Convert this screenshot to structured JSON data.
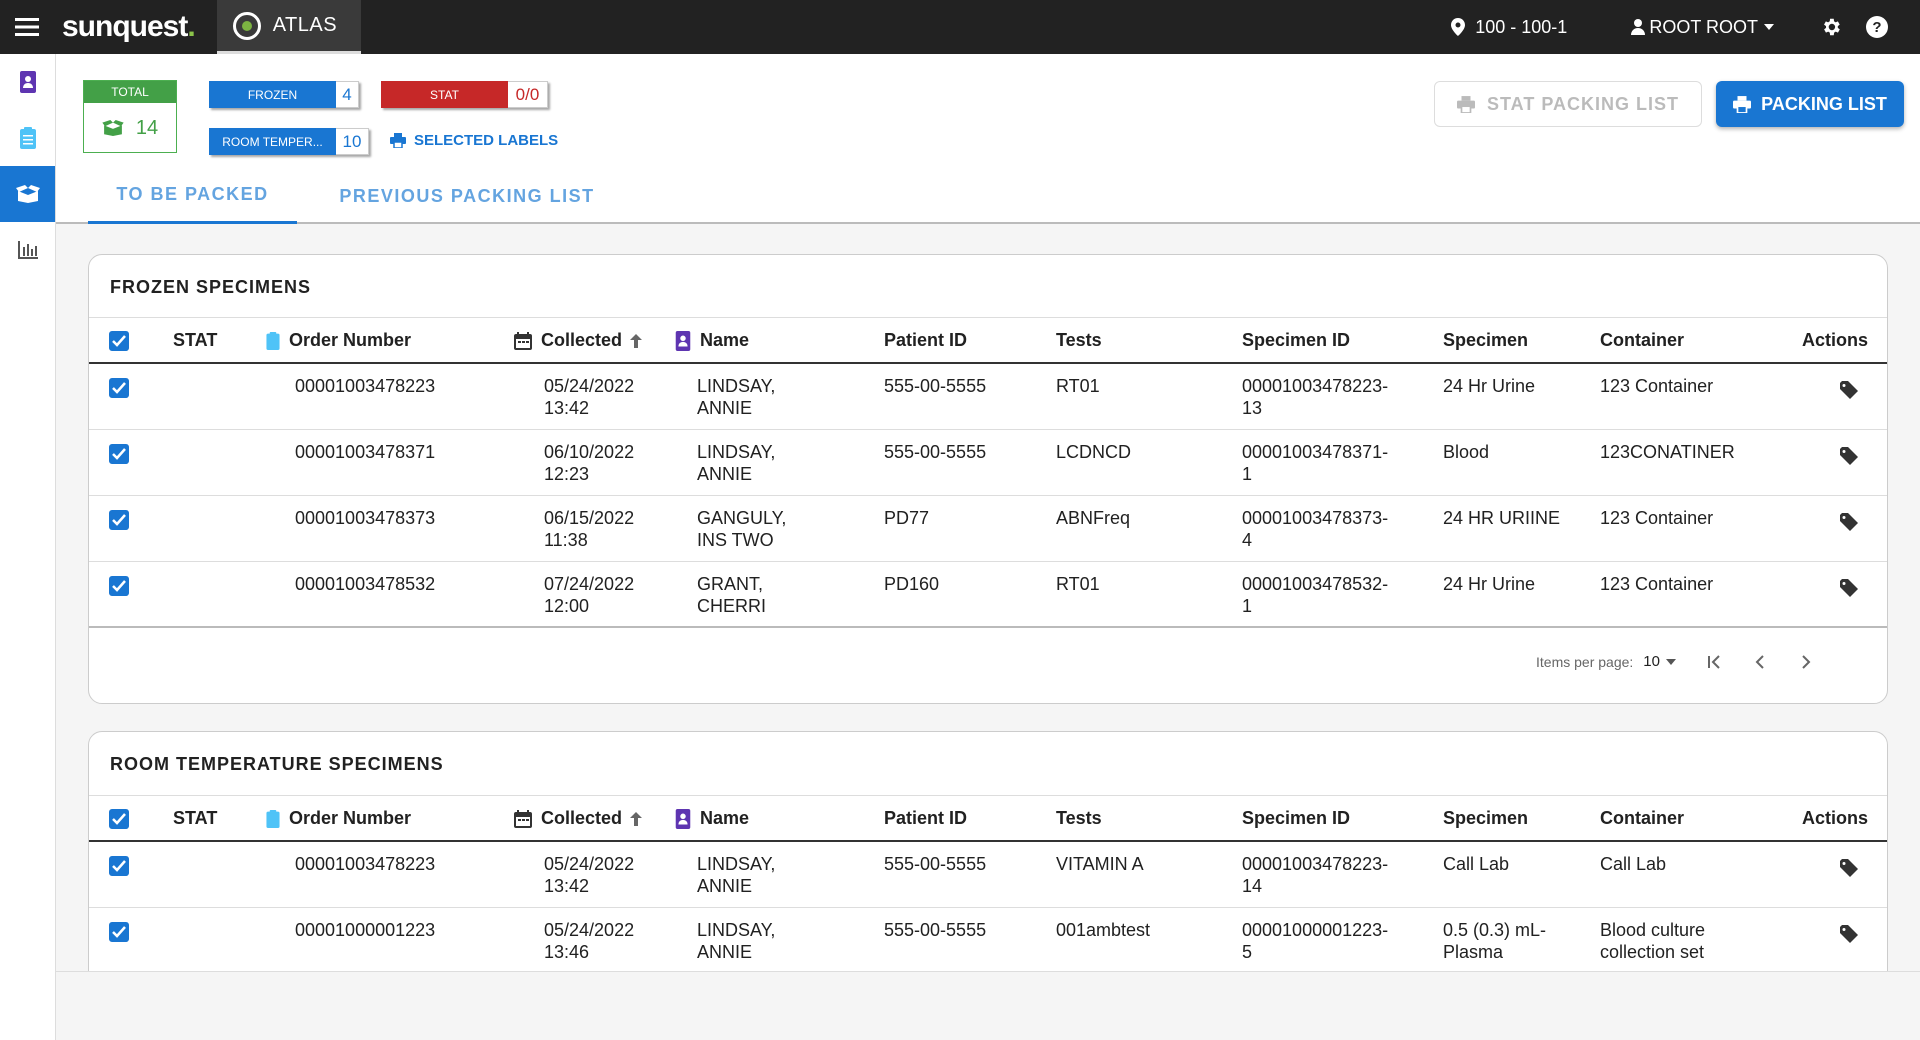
{
  "brand": {
    "name": "sunquest",
    "dot": "."
  },
  "app": {
    "name": "ATLAS"
  },
  "topbar": {
    "location": "100 - 100-1",
    "user": "ROOT ROOT"
  },
  "summary": {
    "total_label": "TOTAL",
    "total_value": "14",
    "frozen_label": "FROZEN",
    "frozen_value": "4",
    "stat_label": "STAT",
    "stat_value": "0/0",
    "room_label": "ROOM TEMPER...",
    "room_value": "10",
    "selected_labels": "SELECTED LABELS"
  },
  "buttons": {
    "stat_packing_list": "STAT PACKING LIST",
    "packing_list": "PACKING LIST"
  },
  "tabs": [
    {
      "label": "TO BE PACKED"
    },
    {
      "label": "PREVIOUS PACKING LIST"
    }
  ],
  "columns": {
    "stat": "STAT",
    "order": "Order Number",
    "collected": "Collected",
    "name": "Name",
    "patient_id": "Patient ID",
    "tests": "Tests",
    "specimen_id": "Specimen ID",
    "specimen": "Specimen",
    "container": "Container",
    "actions": "Actions"
  },
  "frozen": {
    "title": "FROZEN SPECIMENS",
    "rows": [
      {
        "order": "00001003478223",
        "collected_date": "05/24/2022",
        "collected_time": "13:42",
        "name_1": "LINDSAY,",
        "name_2": "ANNIE",
        "patient_id": "555-00-5555",
        "tests": "RT01",
        "specimen_id_1": "00001003478223-",
        "specimen_id_2": "13",
        "specimen_1": "24 Hr Urine",
        "specimen_2": "",
        "container_1": "123 Container",
        "container_2": ""
      },
      {
        "order": "00001003478371",
        "collected_date": "06/10/2022",
        "collected_time": "12:23",
        "name_1": "LINDSAY,",
        "name_2": "ANNIE",
        "patient_id": "555-00-5555",
        "tests": "LCDNCD",
        "specimen_id_1": "00001003478371-",
        "specimen_id_2": "1",
        "specimen_1": "Blood",
        "specimen_2": "",
        "container_1": "123CONATINER",
        "container_2": ""
      },
      {
        "order": "00001003478373",
        "collected_date": "06/15/2022",
        "collected_time": "11:38",
        "name_1": "GANGULY,",
        "name_2": "INS TWO",
        "patient_id": "PD77",
        "tests": "ABNFreq",
        "specimen_id_1": "00001003478373-",
        "specimen_id_2": "4",
        "specimen_1": "24 HR URIINE",
        "specimen_2": "",
        "container_1": "123 Container",
        "container_2": ""
      },
      {
        "order": "00001003478532",
        "collected_date": "07/24/2022",
        "collected_time": "12:00",
        "name_1": "GRANT,",
        "name_2": "CHERRI",
        "patient_id": "PD160",
        "tests": "RT01",
        "specimen_id_1": "00001003478532-",
        "specimen_id_2": "1",
        "specimen_1": "24 Hr Urine",
        "specimen_2": "",
        "container_1": "123 Container",
        "container_2": ""
      }
    ],
    "paginator": {
      "label": "Items per page:",
      "size": "10"
    }
  },
  "room": {
    "title": "ROOM TEMPERATURE SPECIMENS",
    "rows": [
      {
        "order": "00001003478223",
        "collected_date": "05/24/2022",
        "collected_time": "13:42",
        "name_1": "LINDSAY,",
        "name_2": "ANNIE",
        "patient_id": "555-00-5555",
        "tests": "VITAMIN A",
        "specimen_id_1": "00001003478223-",
        "specimen_id_2": "14",
        "specimen_1": "Call Lab",
        "specimen_2": "",
        "container_1": "Call Lab",
        "container_2": ""
      },
      {
        "order": "00001000001223",
        "collected_date": "05/24/2022",
        "collected_time": "13:46",
        "name_1": "LINDSAY,",
        "name_2": "ANNIE",
        "patient_id": "555-00-5555",
        "tests": "001ambtest",
        "specimen_id_1": "00001000001223-",
        "specimen_id_2": "5",
        "specimen_1": "0.5 (0.3) mL-",
        "specimen_2": "Plasma",
        "container_1": "Blood culture",
        "container_2": "collection set"
      }
    ]
  },
  "colors": {
    "primary": "#1976d2",
    "stat_red": "#c62828",
    "total_green": "#43a047",
    "topbar": "#222222"
  }
}
